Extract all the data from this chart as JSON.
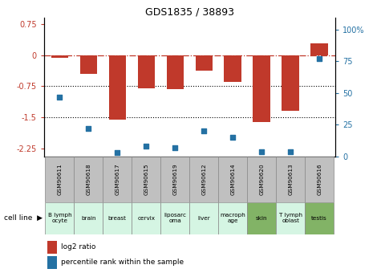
{
  "title": "GDS1835 / 38893",
  "samples": [
    "GSM90611",
    "GSM90618",
    "GSM90617",
    "GSM90615",
    "GSM90619",
    "GSM90612",
    "GSM90614",
    "GSM90620",
    "GSM90613",
    "GSM90616"
  ],
  "cell_lines": [
    "B lymph\nocyte",
    "brain",
    "breast",
    "cervix",
    "liposarc\noma",
    "liver",
    "macroph\nage",
    "skin",
    "T lymph\noblast",
    "testis"
  ],
  "cell_line_colors": [
    "#d5f5e3",
    "#d5f5e3",
    "#d5f5e3",
    "#d5f5e3",
    "#d5f5e3",
    "#d5f5e3",
    "#d5f5e3",
    "#82b366",
    "#d5f5e3",
    "#82b366"
  ],
  "log2_ratio": [
    -0.07,
    -0.45,
    -1.55,
    -0.8,
    -0.82,
    -0.38,
    -0.65,
    -1.62,
    -1.35,
    0.28
  ],
  "percentile_rank": [
    47,
    22,
    3,
    8,
    7,
    20,
    15,
    4,
    4,
    77
  ],
  "ylim_left": [
    -2.45,
    0.9
  ],
  "ylim_right": [
    0,
    108.97
  ],
  "yticks_left": [
    0.75,
    0,
    -0.75,
    -1.5,
    -2.25
  ],
  "yticks_right": [
    100,
    75,
    50,
    25,
    0
  ],
  "bar_color": "#c0392b",
  "scatter_color": "#2471a3",
  "hline_color": "#c0392b",
  "dotline_color": "#000000",
  "bar_width": 0.6,
  "gsm_box_color": "#c0c0c0",
  "gsm_box_edge": "#888888"
}
